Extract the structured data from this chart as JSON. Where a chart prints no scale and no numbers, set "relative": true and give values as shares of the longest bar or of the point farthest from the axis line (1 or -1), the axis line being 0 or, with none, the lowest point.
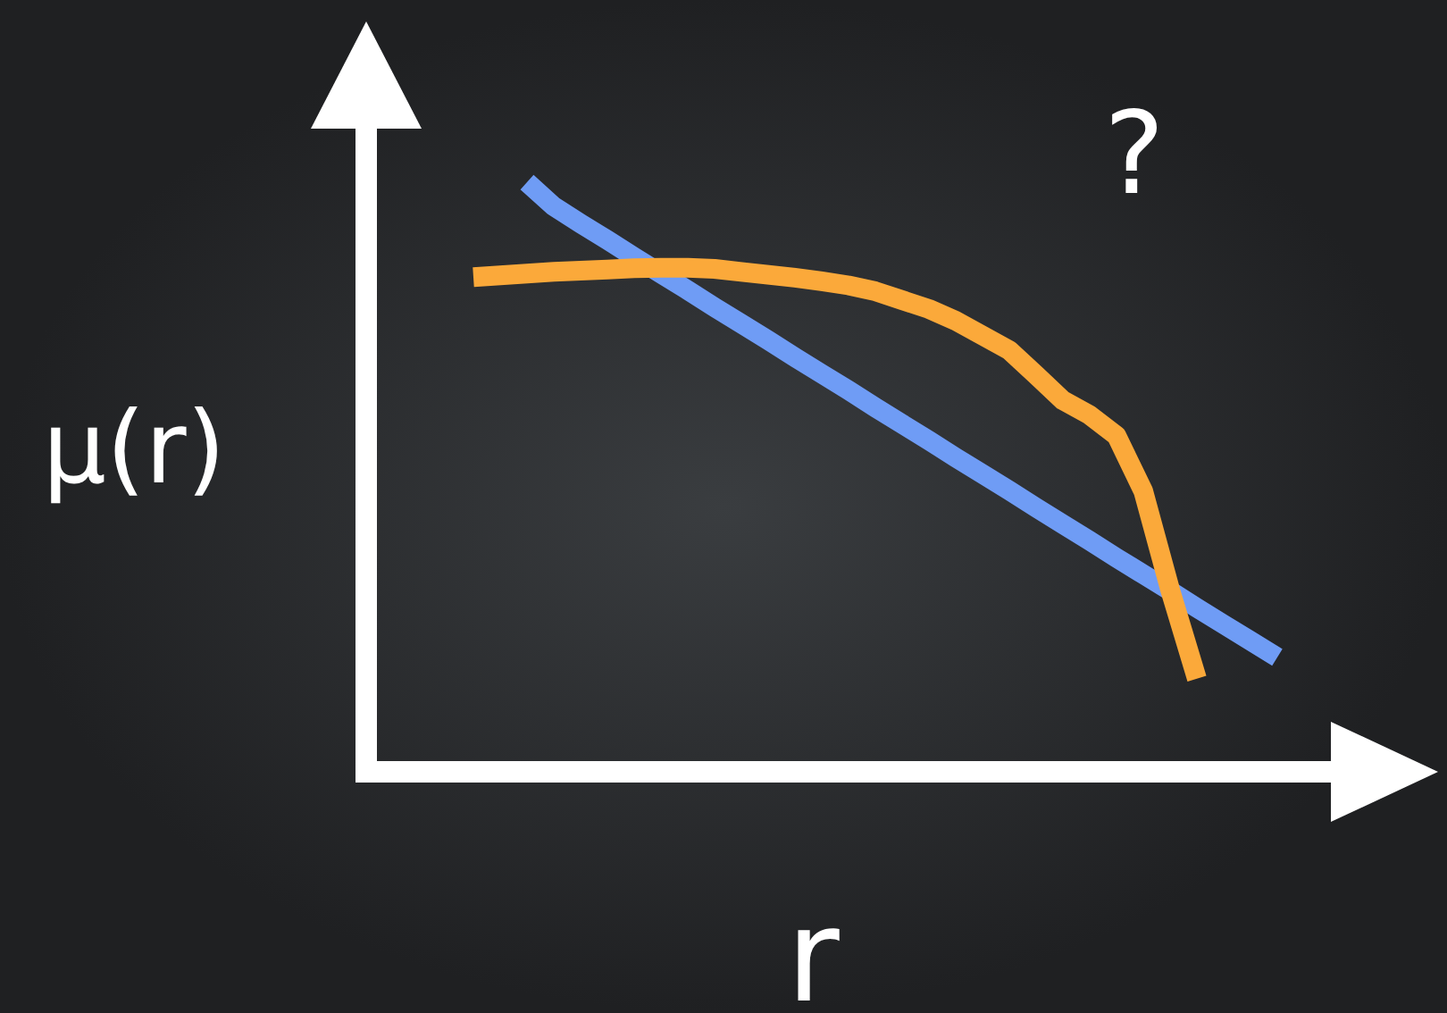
{
  "chart_data": {
    "type": "line",
    "relative": true,
    "xlabel": "r",
    "ylabel": "μ(r)",
    "annotations": [
      "?"
    ],
    "categories": [
      null,
      null,
      null,
      null,
      null,
      null,
      null,
      null,
      null,
      null,
      null,
      null,
      null,
      null,
      null,
      null,
      null,
      null,
      null,
      null,
      null,
      null,
      null,
      null,
      null,
      null,
      null,
      null,
      null,
      null,
      null
    ],
    "series": [
      {
        "color": "#6f9cf5",
        "values": [
          null,
          null,
          1,
          0.959,
          0.93,
          0.902,
          0.873,
          0.845,
          0.817,
          0.788,
          0.76,
          0.732,
          0.703,
          0.675,
          0.647,
          0.618,
          0.59,
          0.562,
          0.533,
          0.505,
          0.477,
          0.448,
          0.42,
          0.392,
          0.363,
          0.335,
          0.307,
          0.278,
          0.25,
          0.222,
          0.194
        ]
      },
      {
        "color": "#fba93a",
        "values": [
          0.839,
          0.842,
          0.845,
          0.848,
          0.85,
          0.852,
          0.854,
          0.855,
          0.855,
          0.853,
          0.848,
          0.843,
          0.838,
          0.832,
          0.825,
          0.815,
          0.8,
          0.785,
          0.765,
          0.74,
          0.715,
          0.673,
          0.63,
          0.605,
          0.57,
          0.476,
          0.309,
          0.158,
          null,
          null,
          null
        ]
      }
    ]
  }
}
